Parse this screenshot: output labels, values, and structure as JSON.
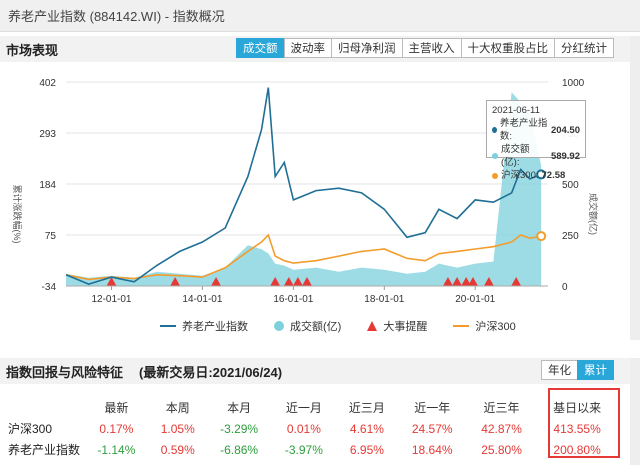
{
  "window": {
    "title": "养老产业指数 (884142.WI) - 指数概况"
  },
  "market": {
    "title": "市场表现",
    "tabs": [
      "成交额",
      "波动率",
      "归母净利润",
      "主营收入",
      "十大权重股占比",
      "分红统计"
    ],
    "active_tab": "成交额"
  },
  "tooltip": {
    "date": "2021-06-11",
    "rows": [
      {
        "label": "养老产业指数:",
        "value": "204.50",
        "color": "#1f6f96"
      },
      {
        "label": "成交额(亿):",
        "value": "589.92",
        "color": "#7ed0dc"
      },
      {
        "label": "沪深300:",
        "value": "72.58",
        "color": "#f39c2c"
      }
    ]
  },
  "legend": [
    {
      "label": "养老产业指数",
      "icon": "line",
      "color": "#1f6f96"
    },
    {
      "label": "成交额(亿)",
      "icon": "circle",
      "color": "#7ed0dc"
    },
    {
      "label": "大事提醒",
      "icon": "triangle",
      "color": "#e53935"
    },
    {
      "label": "沪深300",
      "icon": "line",
      "color": "#f39c2c"
    }
  ],
  "chart_data": {
    "type": "line",
    "ylabel_left": "累计涨跌幅(%)",
    "ylabel_right": "成交额(亿)",
    "yticks_left": [
      "402",
      "293",
      "184",
      "75",
      "-34"
    ],
    "yticks_right": [
      "1000",
      "750",
      "500",
      "250",
      "0"
    ],
    "ylim_left": [
      -34,
      402
    ],
    "ylim_right": [
      0,
      1000
    ],
    "xticks": [
      "12-01-01",
      "14-01-01",
      "16-01-01",
      "18-01-01",
      "20-01-01"
    ],
    "x": [
      2011.0,
      2011.5,
      2012.0,
      2012.5,
      2013.0,
      2013.5,
      2014.0,
      2014.5,
      2015.0,
      2015.3,
      2015.45,
      2015.6,
      2015.8,
      2016.0,
      2016.5,
      2017.0,
      2017.5,
      2018.0,
      2018.5,
      2018.9,
      2019.2,
      2019.6,
      2020.0,
      2020.4,
      2020.8,
      2021.0,
      2021.2,
      2021.45
    ],
    "series": [
      {
        "name": "养老产业指数",
        "axis": "left",
        "color": "#1f6f96",
        "values": [
          -10,
          -30,
          -15,
          -25,
          10,
          40,
          60,
          90,
          200,
          300,
          390,
          200,
          230,
          150,
          170,
          175,
          165,
          130,
          70,
          80,
          130,
          110,
          150,
          145,
          165,
          215,
          195,
          204.5
        ]
      },
      {
        "name": "沪深300",
        "axis": "left",
        "color": "#f39c2c",
        "values": [
          -10,
          -20,
          -15,
          -18,
          -10,
          -12,
          -15,
          5,
          40,
          60,
          75,
          30,
          20,
          15,
          20,
          30,
          40,
          45,
          25,
          20,
          35,
          40,
          45,
          50,
          60,
          75,
          68,
          72.58
        ]
      },
      {
        "name": "成交额(亿)",
        "axis": "right",
        "color": "#7ed0dc",
        "values": [
          60,
          40,
          50,
          40,
          70,
          60,
          50,
          90,
          200,
          180,
          160,
          110,
          100,
          80,
          90,
          70,
          90,
          80,
          60,
          70,
          110,
          90,
          110,
          120,
          950,
          900,
          850,
          589.92
        ]
      }
    ],
    "events_x": [
      2012.0,
      2013.4,
      2014.3,
      2015.6,
      2015.9,
      2016.1,
      2016.3,
      2019.4,
      2019.6,
      2019.8,
      2019.95,
      2020.3,
      2020.9
    ]
  },
  "returns": {
    "title": "指数回报与风险特征",
    "date_label": "(最新交易日:2021/06/24)",
    "toggle": [
      "年化",
      "累计"
    ],
    "toggle_active": "累计",
    "headers": [
      "",
      "最新",
      "本周",
      "本月",
      "近一月",
      "近三月",
      "近一年",
      "近三年",
      "基日以来"
    ],
    "rows": [
      {
        "name": "沪深300",
        "values": [
          "0.17%",
          "1.05%",
          "-3.29%",
          "0.01%",
          "4.61%",
          "24.57%",
          "42.87%",
          "413.55%"
        ]
      },
      {
        "name": "养老产业指数",
        "values": [
          "-1.14%",
          "0.59%",
          "-6.86%",
          "-3.97%",
          "6.95%",
          "18.64%",
          "25.80%",
          "200.80%"
        ]
      }
    ]
  },
  "colors": {
    "accent": "#2aa7d9",
    "up": "#e53935",
    "down": "#2e9e3c",
    "highlight": "#e53935"
  }
}
